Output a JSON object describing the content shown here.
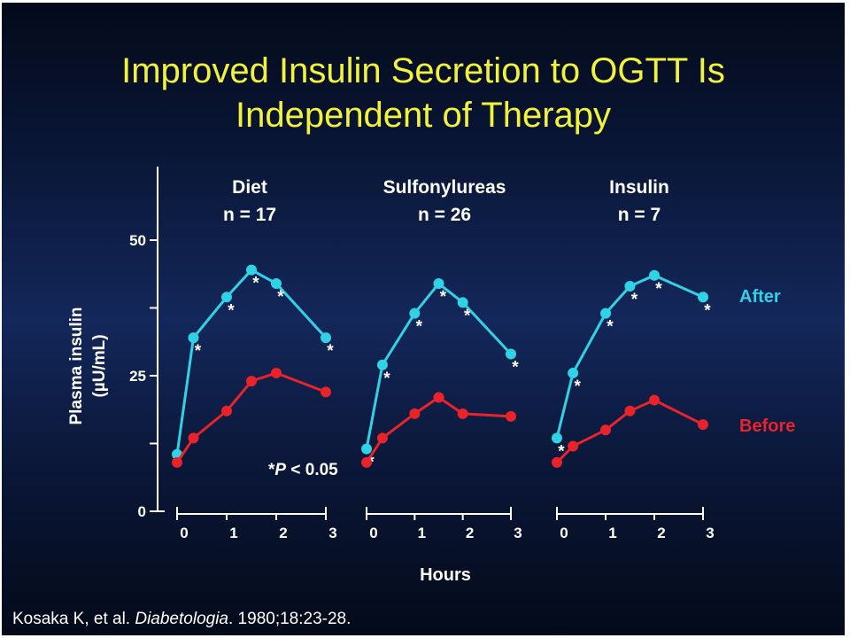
{
  "title_line1": "Improved Insulin Secretion to OGTT Is",
  "title_line2": "Independent of Therapy",
  "citation": {
    "authors": "Kosaka K, et al. ",
    "journal": "Diabetologia",
    "details": ". 1980;18:23-28."
  },
  "colors": {
    "after": "#30d2e6",
    "before": "#e8232a",
    "axis": "#ffffff",
    "asterisk": "#ffffff"
  },
  "chart_data": {
    "type": "line",
    "ylabel_line1": "Plasma insulin",
    "ylabel_line2": "(µU/mL)",
    "xlabel": "Hours",
    "ylim": [
      0,
      65
    ],
    "yticks": [
      0,
      25,
      50
    ],
    "xticks": [
      0,
      1,
      2,
      3
    ],
    "significance_note_prefix": "*",
    "significance_note_italic": "P",
    "significance_note_suffix": " < 0.05",
    "legend": {
      "after": "After",
      "before": "Before"
    },
    "panels": [
      {
        "name": "Diet",
        "n_label": "n =  17",
        "x": [
          0,
          0.33,
          1,
          1.5,
          2,
          3
        ],
        "series": [
          {
            "name": "After",
            "values": [
              10.5,
              32,
              39.5,
              44.5,
              42,
              32
            ],
            "significant": [
              false,
              true,
              true,
              true,
              true,
              true
            ]
          },
          {
            "name": "Before",
            "values": [
              9,
              13.5,
              18.5,
              24,
              25.5,
              22
            ],
            "significant": [
              false,
              false,
              false,
              false,
              false,
              false
            ]
          }
        ]
      },
      {
        "name": "Sulfonylureas",
        "n_label": "n = 26",
        "x": [
          0,
          0.33,
          1,
          1.5,
          2,
          3
        ],
        "series": [
          {
            "name": "After",
            "values": [
              11.5,
              27,
              36.5,
              42,
              38.5,
              29
            ],
            "significant": [
              true,
              true,
              true,
              true,
              true,
              true
            ]
          },
          {
            "name": "Before",
            "values": [
              9,
              13.5,
              18,
              21,
              18,
              17.5
            ],
            "significant": [
              false,
              false,
              false,
              false,
              false,
              false
            ]
          }
        ]
      },
      {
        "name": "Insulin",
        "n_label": "n = 7",
        "x": [
          0,
          0.33,
          1,
          1.5,
          2,
          3
        ],
        "series": [
          {
            "name": "After",
            "values": [
              13.5,
              25.5,
              36.5,
              41.5,
              43.5,
              39.5
            ],
            "significant": [
              true,
              true,
              true,
              true,
              true,
              true
            ]
          },
          {
            "name": "Before",
            "values": [
              9,
              12,
              15,
              18.5,
              20.5,
              16
            ],
            "significant": [
              false,
              false,
              false,
              false,
              false,
              false
            ]
          }
        ]
      }
    ]
  }
}
